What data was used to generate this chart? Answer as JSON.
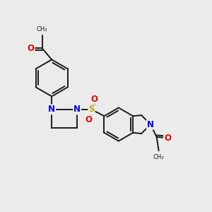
{
  "background_color": "#ebebeb",
  "bond_color": "#1a1a1a",
  "bond_width": 1.4,
  "atom_colors": {
    "N": "#0000ee",
    "O": "#ee0000",
    "S": "#bbaa00",
    "C": "#1a1a1a"
  },
  "font_size_atom": 8.5,
  "fig_size": [
    3.0,
    3.0
  ],
  "dpi": 100,
  "xlim": [
    0,
    12
  ],
  "ylim": [
    0,
    12
  ]
}
